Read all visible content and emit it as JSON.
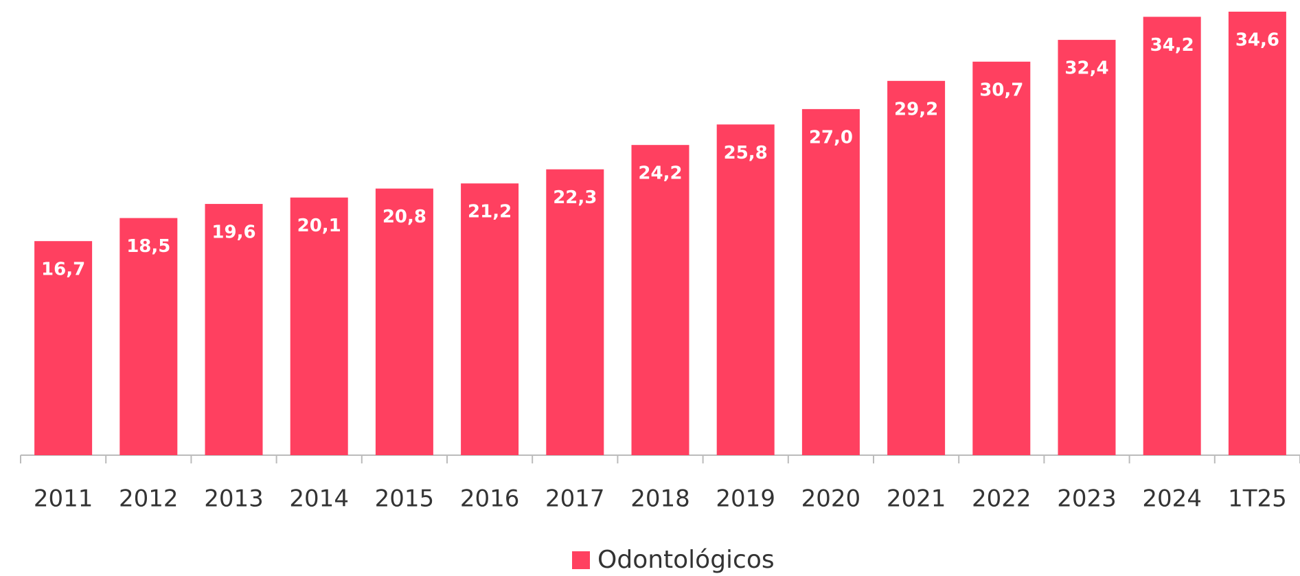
{
  "chart_data": {
    "type": "bar",
    "categories": [
      "2011",
      "2012",
      "2013",
      "2014",
      "2015",
      "2016",
      "2017",
      "2018",
      "2019",
      "2020",
      "2021",
      "2022",
      "2023",
      "2024",
      "1T25"
    ],
    "series": [
      {
        "name": "Odontológicos",
        "color": "#ff4060",
        "values": [
          16.7,
          18.5,
          19.6,
          20.1,
          20.8,
          21.2,
          22.3,
          24.2,
          25.8,
          27.0,
          29.2,
          30.7,
          32.4,
          34.2,
          34.6
        ],
        "value_labels": [
          "16,7",
          "18,5",
          "19,6",
          "20,1",
          "20,8",
          "21,2",
          "22,3",
          "24,2",
          "25,8",
          "27,0",
          "29,2",
          "30,7",
          "32,4",
          "34,2",
          "34,6"
        ]
      }
    ]
  }
}
